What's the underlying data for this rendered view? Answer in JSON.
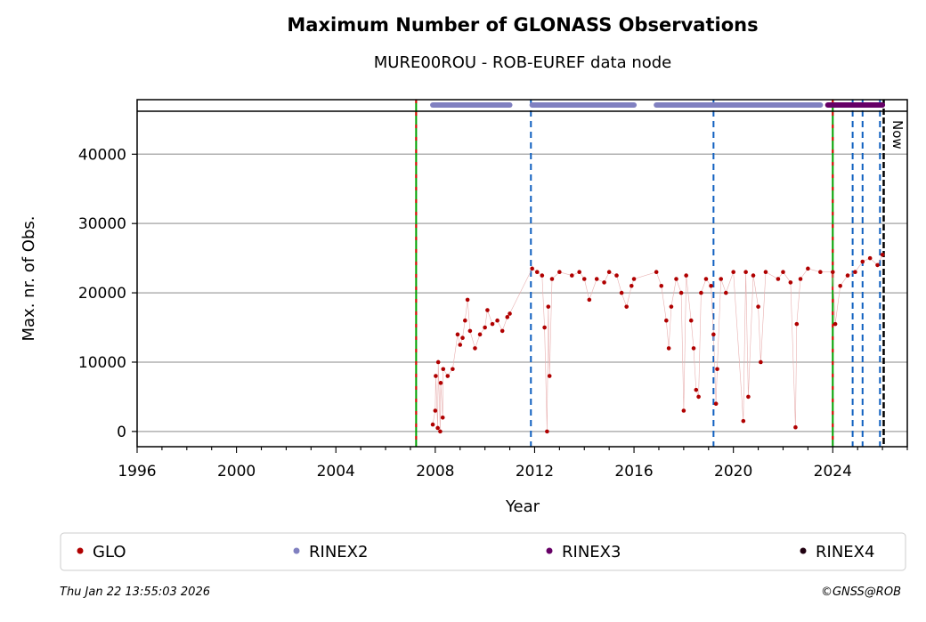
{
  "chart_data": {
    "type": "scatter",
    "title": "Maximum Number of GLONASS Observations",
    "subtitle": "MURE00ROU - ROB-EUREF data node",
    "xlabel": "Year",
    "ylabel": "Max. nr. of Obs.",
    "xlim": [
      1996,
      2027
    ],
    "ylim": [
      -2200,
      46200
    ],
    "xticks": [
      "1996",
      "2000",
      "2004",
      "2008",
      "2012",
      "2016",
      "2020",
      "2024"
    ],
    "yticks": [
      "0",
      "10000",
      "20000",
      "30000",
      "40000"
    ],
    "grid": "y",
    "series": [
      {
        "name": "GLO",
        "color": "#b00000",
        "points": [
          [
            2007.9,
            1000
          ],
          [
            2008.0,
            3000
          ],
          [
            2008.02,
            8000
          ],
          [
            2008.1,
            500
          ],
          [
            2008.12,
            10000
          ],
          [
            2008.2,
            0
          ],
          [
            2008.22,
            7000
          ],
          [
            2008.3,
            2000
          ],
          [
            2008.32,
            9000
          ],
          [
            2008.5,
            8000
          ],
          [
            2008.7,
            9000
          ],
          [
            2008.9,
            14000
          ],
          [
            2009.0,
            12500
          ],
          [
            2009.1,
            13500
          ],
          [
            2009.2,
            16000
          ],
          [
            2009.3,
            19000
          ],
          [
            2009.4,
            14500
          ],
          [
            2009.6,
            12000
          ],
          [
            2009.8,
            14000
          ],
          [
            2010.0,
            15000
          ],
          [
            2010.1,
            17500
          ],
          [
            2010.3,
            15500
          ],
          [
            2010.5,
            16000
          ],
          [
            2010.7,
            14500
          ],
          [
            2010.9,
            16500
          ],
          [
            2011.0,
            17000
          ],
          [
            2011.9,
            23500
          ],
          [
            2012.1,
            23000
          ],
          [
            2012.3,
            22500
          ],
          [
            2012.4,
            15000
          ],
          [
            2012.5,
            0
          ],
          [
            2012.55,
            18000
          ],
          [
            2012.6,
            8000
          ],
          [
            2012.7,
            22000
          ],
          [
            2013.0,
            23000
          ],
          [
            2013.5,
            22500
          ],
          [
            2013.8,
            23000
          ],
          [
            2014.0,
            22000
          ],
          [
            2014.2,
            19000
          ],
          [
            2014.5,
            22000
          ],
          [
            2014.8,
            21500
          ],
          [
            2015.0,
            23000
          ],
          [
            2015.3,
            22500
          ],
          [
            2015.5,
            20000
          ],
          [
            2015.7,
            18000
          ],
          [
            2015.9,
            21000
          ],
          [
            2016.0,
            22000
          ],
          [
            2016.9,
            23000
          ],
          [
            2017.1,
            21000
          ],
          [
            2017.3,
            16000
          ],
          [
            2017.4,
            12000
          ],
          [
            2017.5,
            18000
          ],
          [
            2017.7,
            22000
          ],
          [
            2017.9,
            20000
          ],
          [
            2018.0,
            3000
          ],
          [
            2018.1,
            22500
          ],
          [
            2018.3,
            16000
          ],
          [
            2018.4,
            12000
          ],
          [
            2018.5,
            6000
          ],
          [
            2018.6,
            5000
          ],
          [
            2018.7,
            20000
          ],
          [
            2018.9,
            22000
          ],
          [
            2019.1,
            21000
          ],
          [
            2019.2,
            14000
          ],
          [
            2019.3,
            4000
          ],
          [
            2019.35,
            9000
          ],
          [
            2019.5,
            22000
          ],
          [
            2019.7,
            20000
          ],
          [
            2020.0,
            23000
          ],
          [
            2020.4,
            1500
          ],
          [
            2020.5,
            23000
          ],
          [
            2020.6,
            5000
          ],
          [
            2020.8,
            22500
          ],
          [
            2021.0,
            18000
          ],
          [
            2021.1,
            10000
          ],
          [
            2021.3,
            23000
          ],
          [
            2021.8,
            22000
          ],
          [
            2022.0,
            23000
          ],
          [
            2022.3,
            21500
          ],
          [
            2022.5,
            600
          ],
          [
            2022.55,
            15500
          ],
          [
            2022.7,
            22000
          ],
          [
            2023.0,
            23500
          ],
          [
            2023.5,
            23000
          ],
          [
            2024.0,
            23000
          ],
          [
            2024.1,
            15500
          ],
          [
            2024.3,
            21000
          ],
          [
            2024.6,
            22500
          ],
          [
            2024.9,
            23000
          ],
          [
            2025.2,
            24500
          ],
          [
            2025.5,
            25000
          ],
          [
            2025.8,
            24000
          ],
          [
            2026.0,
            25500
          ]
        ]
      },
      {
        "name": "RINEX2",
        "color": "#8080c0",
        "spans": [
          [
            2007.9,
            2011.0
          ],
          [
            2011.9,
            2016.0
          ],
          [
            2016.9,
            2023.5
          ]
        ]
      },
      {
        "name": "RINEX3",
        "color": "#660066",
        "spans": [
          [
            2023.8,
            2026.0
          ]
        ]
      },
      {
        "name": "RINEX4",
        "color": "#200010",
        "spans": []
      }
    ],
    "event_lines": {
      "red_green": [
        2007.23,
        2024.0
      ],
      "blue_dashed": [
        2011.85,
        2019.2,
        2024.8,
        2025.2,
        2025.9
      ],
      "now": 2026.05
    },
    "now_label": "Now",
    "legend_placement": "bottom"
  },
  "footer": {
    "timestamp": "Thu Jan 22 13:55:03 2026",
    "copyright": "©GNSS@ROB"
  }
}
